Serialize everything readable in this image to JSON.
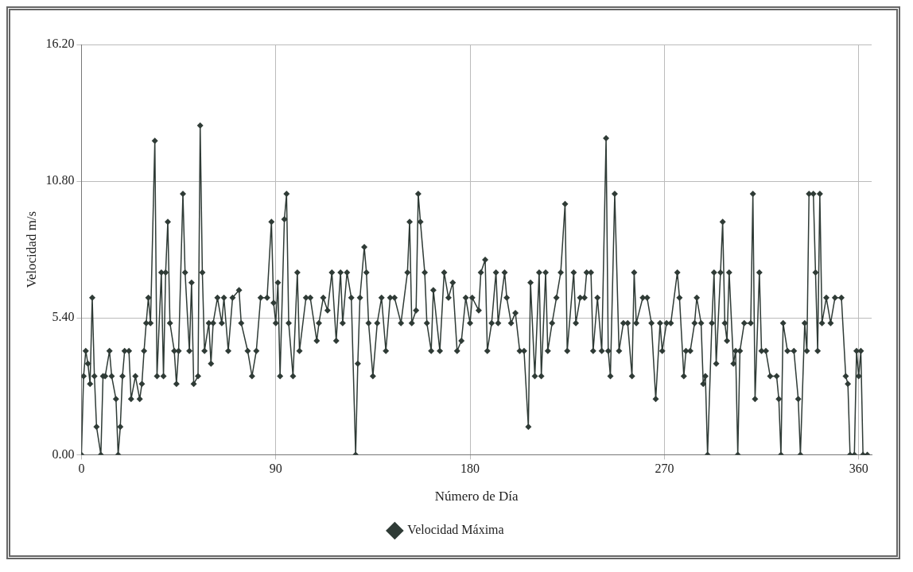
{
  "chart_data": {
    "type": "line",
    "xlabel": "Número de Día",
    "ylabel": "Velocidad m/s",
    "xlim": [
      0,
      366
    ],
    "xticks": [
      0,
      90,
      180,
      270,
      360
    ],
    "ylim": [
      0,
      16.2
    ],
    "yticks": [
      {
        "value": 0,
        "label": "0.00"
      },
      {
        "value": 5.4,
        "label": "5.40"
      },
      {
        "value": 10.8,
        "label": "10.80"
      },
      {
        "value": 16.2,
        "label": "16.20"
      }
    ],
    "grid": true,
    "legend": "bottom",
    "marker": "diamond",
    "line_style": "solid",
    "series": [
      {
        "name": "Velocidad Máxima",
        "color": "#2f3b36",
        "x": [
          0,
          1,
          2,
          3,
          4,
          5,
          6,
          7,
          9,
          10,
          11,
          13,
          14,
          16,
          17,
          18,
          19,
          20,
          22,
          23,
          25,
          27,
          28,
          29,
          30,
          31,
          32,
          34,
          35,
          37,
          38,
          39,
          40,
          41,
          43,
          44,
          45,
          47,
          48,
          50,
          51,
          52,
          54,
          55,
          56,
          57,
          59,
          60,
          61,
          63,
          65,
          66,
          68,
          70,
          73,
          74,
          77,
          79,
          81,
          83,
          86,
          88,
          89,
          90,
          91,
          92,
          94,
          95,
          96,
          98,
          100,
          101,
          104,
          106,
          109,
          110,
          112,
          114,
          116,
          118,
          120,
          121,
          123,
          125,
          127,
          128,
          129,
          131,
          132,
          133,
          135,
          137,
          139,
          141,
          143,
          145,
          148,
          151,
          152,
          153,
          155,
          156,
          157,
          159,
          160,
          162,
          163,
          166,
          168,
          170,
          172,
          174,
          176,
          178,
          180,
          181,
          184,
          185,
          187,
          188,
          190,
          192,
          193,
          196,
          197,
          199,
          201,
          203,
          205,
          207,
          208,
          210,
          212,
          213,
          215,
          216,
          218,
          220,
          222,
          224,
          225,
          228,
          229,
          231,
          233,
          234,
          236,
          237,
          239,
          241,
          243,
          244,
          245,
          247,
          249,
          251,
          253,
          255,
          256,
          257,
          260,
          262,
          264,
          266,
          268,
          269,
          271,
          273,
          276,
          277,
          279,
          280,
          282,
          284,
          285,
          287,
          288,
          289,
          290,
          292,
          293,
          294,
          296,
          297,
          298,
          299,
          300,
          302,
          303,
          304,
          305,
          307,
          310,
          311,
          312,
          314,
          315,
          317,
          319,
          322,
          323,
          324,
          325,
          327,
          330,
          332,
          333,
          335,
          336,
          337,
          339,
          340,
          341,
          342,
          343,
          345,
          347,
          349,
          352,
          354,
          355,
          356,
          358,
          359,
          360,
          361,
          362,
          364
        ],
        "values": [
          0,
          3.1,
          4.1,
          3.6,
          2.8,
          6.2,
          3.1,
          1.1,
          0,
          3.1,
          3.1,
          4.1,
          3.1,
          2.2,
          0,
          1.1,
          3.1,
          4.1,
          4.1,
          2.2,
          3.1,
          2.2,
          2.8,
          4.1,
          5.2,
          6.2,
          5.2,
          12.4,
          3.1,
          7.2,
          3.1,
          7.2,
          9.2,
          5.2,
          4.1,
          2.8,
          4.1,
          10.3,
          7.2,
          4.1,
          6.8,
          2.8,
          3.1,
          13.0,
          7.2,
          4.1,
          5.2,
          3.6,
          5.2,
          6.2,
          5.2,
          6.2,
          4.1,
          6.2,
          6.5,
          5.2,
          4.1,
          3.1,
          4.1,
          6.2,
          6.2,
          9.2,
          6.0,
          5.2,
          6.8,
          3.1,
          9.3,
          10.3,
          5.2,
          3.1,
          7.2,
          4.1,
          6.2,
          6.2,
          4.5,
          5.2,
          6.2,
          5.7,
          7.2,
          4.5,
          7.2,
          5.2,
          7.2,
          6.2,
          0,
          3.6,
          6.2,
          8.2,
          7.2,
          5.2,
          3.1,
          5.2,
          6.2,
          4.1,
          6.2,
          6.2,
          5.2,
          7.2,
          9.2,
          5.2,
          5.7,
          10.3,
          9.2,
          7.2,
          5.2,
          4.1,
          6.5,
          4.1,
          7.2,
          6.2,
          6.8,
          4.1,
          4.5,
          6.2,
          5.2,
          6.2,
          5.7,
          7.2,
          7.7,
          4.1,
          5.2,
          7.2,
          5.2,
          7.2,
          6.2,
          5.2,
          5.6,
          4.1,
          4.1,
          1.1,
          6.8,
          3.1,
          7.2,
          3.1,
          7.2,
          4.1,
          5.2,
          6.2,
          7.2,
          9.9,
          4.1,
          7.2,
          5.2,
          6.2,
          6.2,
          7.2,
          7.2,
          4.1,
          6.2,
          4.1,
          12.5,
          4.1,
          3.1,
          10.3,
          4.1,
          5.2,
          5.2,
          3.1,
          7.2,
          5.2,
          6.2,
          6.2,
          5.2,
          2.2,
          5.2,
          4.1,
          5.2,
          5.2,
          7.2,
          6.2,
          3.1,
          4.1,
          4.1,
          5.2,
          6.2,
          5.2,
          2.8,
          3.1,
          0,
          5.2,
          7.2,
          3.6,
          7.2,
          9.2,
          5.2,
          4.5,
          7.2,
          3.6,
          4.1,
          0,
          4.1,
          5.2,
          5.2,
          10.3,
          2.2,
          7.2,
          4.1,
          4.1,
          3.1,
          3.1,
          2.2,
          0,
          5.2,
          4.1,
          4.1,
          2.2,
          0,
          5.2,
          4.1,
          10.3,
          10.3,
          7.2,
          4.1,
          10.3,
          5.2,
          6.2,
          5.2,
          6.2,
          6.2,
          3.1,
          2.8,
          0,
          0,
          4.1,
          3.1,
          4.1,
          0,
          0
        ]
      }
    ]
  }
}
